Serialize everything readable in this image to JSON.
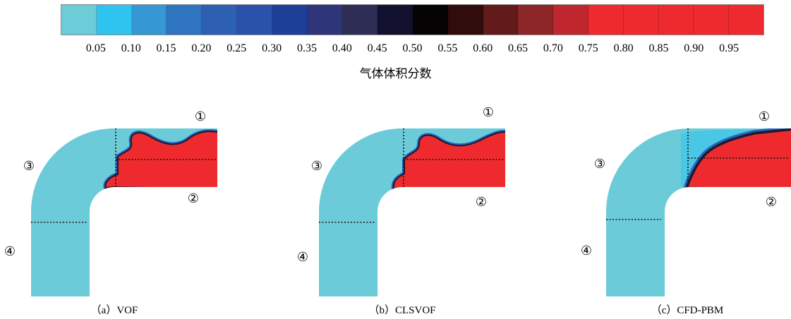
{
  "colorbar": {
    "colors": [
      "#6cccd8",
      "#2ec4ef",
      "#3597d3",
      "#2e74bf",
      "#2d5fb3",
      "#2b52aa",
      "#1e3f98",
      "#2f3579",
      "#2e2d55",
      "#12102f",
      "#050303",
      "#300c0c",
      "#621a1b",
      "#8d2627",
      "#c0262d",
      "#ee2a2e",
      "#ee2a2e",
      "#ee2a2e",
      "#ee2a2e",
      "#ee2a2e"
    ],
    "ticks": [
      "0.05",
      "0.10",
      "0.15",
      "0.20",
      "0.25",
      "0.30",
      "0.35",
      "0.40",
      "0.45",
      "0.50",
      "0.55",
      "0.60",
      "0.65",
      "0.70",
      "0.75",
      "0.80",
      "0.85",
      "0.90",
      "0.95"
    ],
    "title": "气体体积分数"
  },
  "colors": {
    "gas": "#6ccbd9",
    "liquid": "#ee2a2e",
    "interface_dark": "#1a1a2e",
    "interface_blue": "#2a62b8",
    "divider": "#111111"
  },
  "markers": {
    "m1": "①",
    "m2": "②",
    "m3": "③",
    "m4": "④"
  },
  "panels": [
    {
      "id": "a",
      "caption": "（a）VOF"
    },
    {
      "id": "b",
      "caption": "（b）CLSVOF"
    },
    {
      "id": "c",
      "caption": "（c）CFD-PBM"
    }
  ]
}
